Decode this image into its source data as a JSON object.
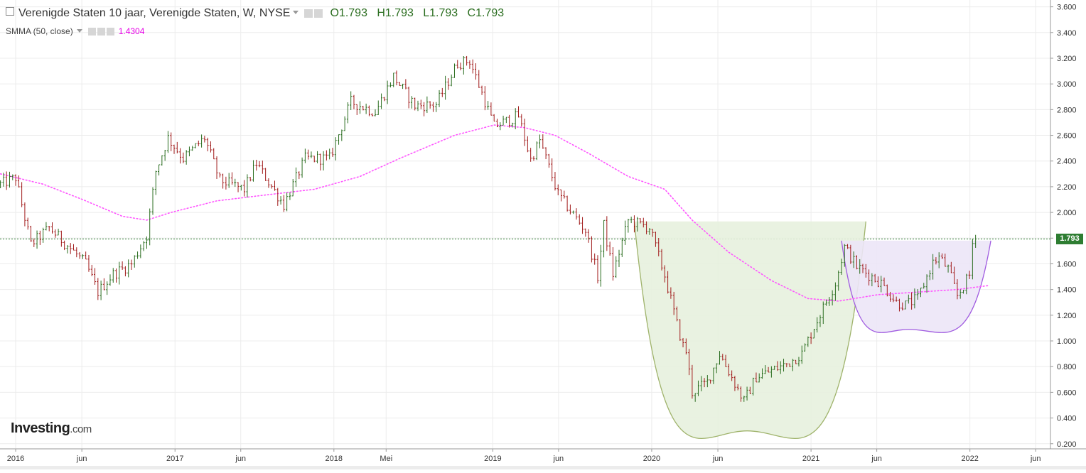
{
  "legend": {
    "title": "Verenigde Staten 10 jaar, Verenigde Staten, W, NYSE",
    "open": "O1.793",
    "high": "H1.793",
    "low": "L1.793",
    "close": "C1.793"
  },
  "indicator": {
    "label": "SMMA (50, close)",
    "value": "1.4304"
  },
  "last_price_label": "1.793",
  "logo": {
    "brand": "Investing",
    "domain": ".com"
  },
  "colors": {
    "up": "#2a6d1f",
    "down": "#a01a1a",
    "smma": "#ff55ff",
    "cup1_fill": "#e7f1de",
    "cup1_stroke": "#9fb36b",
    "cup2_fill": "#ece5f7",
    "cup2_stroke": "#a05ce0",
    "last_price_line": "#2e7d32",
    "grid": "#ececec"
  },
  "chart_data": {
    "type": "ohlc",
    "title": "Verenigde Staten 10 jaar, Verenigde Staten, W, NYSE",
    "xlabel": "",
    "ylabel": "",
    "y_ticks": [
      "0.200",
      "0.400",
      "0.600",
      "0.800",
      "1.000",
      "1.200",
      "1.400",
      "1.600",
      "1.800",
      "2.000",
      "2.200",
      "2.400",
      "2.600",
      "2.800",
      "3.000",
      "3.200",
      "3.400",
      "3.600"
    ],
    "ylim": [
      0.16,
      3.62
    ],
    "x_tick_labels": [
      "2016",
      "jun",
      "2017",
      "jun",
      "2018",
      "Mei",
      "2019",
      "jun",
      "2020",
      "jun",
      "2021",
      "jun",
      "2022",
      "jun"
    ],
    "x_tick_dates": [
      "2016-01-01",
      "2016-06-01",
      "2017-01-01",
      "2017-06-01",
      "2018-01-01",
      "2018-05-01",
      "2019-01-01",
      "2019-06-01",
      "2020-01-01",
      "2020-06-01",
      "2021-01-01",
      "2021-06-01",
      "2022-01-01",
      "2022-06-01"
    ],
    "x_range": [
      "2015-11-26",
      "2022-07-05"
    ],
    "grid": true,
    "last_price": 1.793,
    "series": [
      {
        "name": "Verenigde Staten 10 jaar",
        "points": [
          {
            "date": "2015-11-27",
            "close": 2.22
          },
          {
            "date": "2016-01-01",
            "close": 2.27
          },
          {
            "date": "2016-02-05",
            "close": 1.75
          },
          {
            "date": "2016-03-18",
            "close": 1.88
          },
          {
            "date": "2016-05-06",
            "close": 1.72
          },
          {
            "date": "2016-06-10",
            "close": 1.6
          },
          {
            "date": "2016-07-08",
            "close": 1.38
          },
          {
            "date": "2016-08-12",
            "close": 1.52
          },
          {
            "date": "2016-09-23",
            "close": 1.6
          },
          {
            "date": "2016-10-28",
            "close": 1.82
          },
          {
            "date": "2016-11-18",
            "close": 2.32
          },
          {
            "date": "2016-12-16",
            "close": 2.58
          },
          {
            "date": "2017-01-20",
            "close": 2.42
          },
          {
            "date": "2017-03-10",
            "close": 2.58
          },
          {
            "date": "2017-04-14",
            "close": 2.25
          },
          {
            "date": "2017-06-09",
            "close": 2.18
          },
          {
            "date": "2017-07-07",
            "close": 2.38
          },
          {
            "date": "2017-09-08",
            "close": 2.06
          },
          {
            "date": "2017-10-27",
            "close": 2.42
          },
          {
            "date": "2017-12-22",
            "close": 2.42
          },
          {
            "date": "2018-02-09",
            "close": 2.86
          },
          {
            "date": "2018-04-06",
            "close": 2.78
          },
          {
            "date": "2018-05-18",
            "close": 3.06
          },
          {
            "date": "2018-07-06",
            "close": 2.83
          },
          {
            "date": "2018-08-24",
            "close": 2.84
          },
          {
            "date": "2018-10-12",
            "close": 3.16
          },
          {
            "date": "2018-11-09",
            "close": 3.18
          },
          {
            "date": "2018-12-21",
            "close": 2.8
          },
          {
            "date": "2019-01-04",
            "close": 2.67
          },
          {
            "date": "2019-03-01",
            "close": 2.75
          },
          {
            "date": "2019-03-29",
            "close": 2.41
          },
          {
            "date": "2019-04-19",
            "close": 2.56
          },
          {
            "date": "2019-05-31",
            "close": 2.14
          },
          {
            "date": "2019-08-02",
            "close": 1.86
          },
          {
            "date": "2019-08-30",
            "close": 1.5
          },
          {
            "date": "2019-09-13",
            "close": 1.9
          },
          {
            "date": "2019-10-04",
            "close": 1.52
          },
          {
            "date": "2019-11-08",
            "close": 1.94
          },
          {
            "date": "2019-12-27",
            "close": 1.88
          },
          {
            "date": "2020-01-31",
            "close": 1.51
          },
          {
            "date": "2020-02-28",
            "close": 1.13
          },
          {
            "date": "2020-03-13",
            "close": 0.96
          },
          {
            "date": "2020-03-20",
            "close": 0.92
          },
          {
            "date": "2020-04-03",
            "close": 0.6
          },
          {
            "date": "2020-05-08",
            "close": 0.68
          },
          {
            "date": "2020-06-05",
            "close": 0.9
          },
          {
            "date": "2020-07-31",
            "close": 0.53
          },
          {
            "date": "2020-08-28",
            "close": 0.72
          },
          {
            "date": "2020-10-09",
            "close": 0.78
          },
          {
            "date": "2020-11-06",
            "close": 0.82
          },
          {
            "date": "2020-12-11",
            "close": 0.9
          },
          {
            "date": "2021-01-08",
            "close": 1.11
          },
          {
            "date": "2021-02-26",
            "close": 1.45
          },
          {
            "date": "2021-03-19",
            "close": 1.73
          },
          {
            "date": "2021-04-16",
            "close": 1.58
          },
          {
            "date": "2021-06-11",
            "close": 1.45
          },
          {
            "date": "2021-07-16",
            "close": 1.3
          },
          {
            "date": "2021-08-06",
            "close": 1.28
          },
          {
            "date": "2021-09-03",
            "close": 1.33
          },
          {
            "date": "2021-10-08",
            "close": 1.61
          },
          {
            "date": "2021-10-22",
            "close": 1.65
          },
          {
            "date": "2021-11-12",
            "close": 1.56
          },
          {
            "date": "2021-12-03",
            "close": 1.35
          },
          {
            "date": "2021-12-31",
            "close": 1.51
          },
          {
            "date": "2022-01-07",
            "close": 1.76
          },
          {
            "date": "2022-01-14",
            "close": 1.793
          }
        ]
      },
      {
        "name": "SMMA (50, close)",
        "points": [
          {
            "date": "2015-11-27",
            "value": 2.3
          },
          {
            "date": "2016-03-04",
            "value": 2.22
          },
          {
            "date": "2016-06-03",
            "value": 2.1
          },
          {
            "date": "2016-09-02",
            "value": 1.97
          },
          {
            "date": "2016-10-28",
            "value": 1.94
          },
          {
            "date": "2016-12-23",
            "value": 2.0
          },
          {
            "date": "2017-04-07",
            "value": 2.09
          },
          {
            "date": "2017-07-14",
            "value": 2.13
          },
          {
            "date": "2017-11-17",
            "value": 2.18
          },
          {
            "date": "2018-03-02",
            "value": 2.28
          },
          {
            "date": "2018-06-01",
            "value": 2.42
          },
          {
            "date": "2018-10-05",
            "value": 2.6
          },
          {
            "date": "2019-01-04",
            "value": 2.68
          },
          {
            "date": "2019-03-15",
            "value": 2.66
          },
          {
            "date": "2019-05-24",
            "value": 2.6
          },
          {
            "date": "2019-08-09",
            "value": 2.46
          },
          {
            "date": "2019-11-08",
            "value": 2.28
          },
          {
            "date": "2020-01-31",
            "value": 2.18
          },
          {
            "date": "2020-04-03",
            "value": 1.94
          },
          {
            "date": "2020-06-26",
            "value": 1.69
          },
          {
            "date": "2020-10-02",
            "value": 1.47
          },
          {
            "date": "2020-12-25",
            "value": 1.33
          },
          {
            "date": "2021-03-05",
            "value": 1.31
          },
          {
            "date": "2021-06-04",
            "value": 1.36
          },
          {
            "date": "2021-09-03",
            "value": 1.38
          },
          {
            "date": "2021-12-03",
            "value": 1.4
          },
          {
            "date": "2022-02-11",
            "value": 1.43
          }
        ]
      }
    ],
    "cup_patterns": [
      {
        "name": "cup-1",
        "left_rim": [
          "2019-11-22",
          1.93
        ],
        "bottom": [
          "2020-08-07",
          0.3
        ],
        "right_rim": [
          "2021-05-07",
          1.93
        ]
      },
      {
        "name": "cup-2",
        "left_rim": [
          "2021-03-12",
          1.78
        ],
        "bottom": [
          "2021-08-13",
          1.09
        ],
        "right_rim": [
          "2022-02-18",
          1.78
        ]
      }
    ]
  }
}
